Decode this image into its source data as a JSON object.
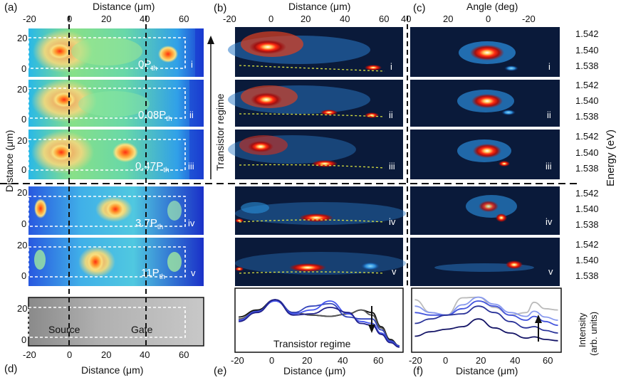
{
  "panel_letters": {
    "a": "(a)",
    "b": "(b)",
    "c": "(c)",
    "d": "(d)",
    "e": "(e)",
    "f": "(f)"
  },
  "axis_labels": {
    "distance_um": "Distance (μm)",
    "angle_deg": "Angle (deg)",
    "energy_ev": "Energy (eV)",
    "intensity": "Intensity",
    "intensity_units": "(arb. units)"
  },
  "annotations": {
    "transistor_regime_vertical": "Transistor regime",
    "transistor_regime_e": "Transistor regime",
    "source": "Source",
    "gate": "Gate"
  },
  "rows": [
    {
      "roman": "i",
      "power": "0P",
      "sub": "th"
    },
    {
      "roman": "ii",
      "power": "0.08P",
      "sub": "th"
    },
    {
      "roman": "iii",
      "power": "0.47P",
      "sub": "th"
    },
    {
      "roman": "iv",
      "power": "3.7P",
      "sub": "th"
    },
    {
      "roman": "v",
      "power": "11P",
      "sub": "th"
    }
  ],
  "ticks": {
    "a_x_top": [
      "-20",
      "0",
      "20",
      "40",
      "60"
    ],
    "a_y": [
      "0",
      "10",
      "20"
    ],
    "b_x_top": [
      "-20",
      "0",
      "20",
      "40",
      "60"
    ],
    "c_x_top": [
      "40",
      "20",
      "0",
      "-20"
    ],
    "energy": [
      "1.542",
      "1.540",
      "1.538"
    ],
    "d_x": [
      "-20",
      "0",
      "20",
      "40",
      "60"
    ],
    "d_y": [
      "0",
      "10",
      "20"
    ],
    "e_x": [
      "-20",
      "0",
      "20",
      "40",
      "60"
    ],
    "f_x": [
      "-20",
      "0",
      "20",
      "40",
      "60"
    ]
  },
  "chart_data": [
    {
      "type": "line",
      "panel": "e",
      "title": "",
      "xlabel": "Distance (μm)",
      "ylabel": "Intensity (arb. units)",
      "xlim": [
        -22,
        70
      ],
      "ylim": [
        0,
        1
      ],
      "x": [
        -20,
        -10,
        0,
        10,
        20,
        30,
        40,
        47,
        53,
        58,
        63,
        68
      ],
      "series": [
        {
          "name": "i",
          "color": "#111111",
          "values": [
            0.55,
            0.66,
            0.82,
            0.62,
            0.58,
            0.56,
            0.6,
            0.66,
            0.62,
            0.4,
            0.2,
            0.1
          ]
        },
        {
          "name": "ii",
          "color": "#555555",
          "values": [
            0.52,
            0.64,
            0.8,
            0.62,
            0.58,
            0.56,
            0.6,
            0.66,
            0.58,
            0.38,
            0.18,
            0.1
          ]
        },
        {
          "name": "iii",
          "color": "#3344bb",
          "values": [
            0.5,
            0.64,
            0.82,
            0.62,
            0.72,
            0.76,
            0.55,
            0.52,
            0.52,
            0.35,
            0.18,
            0.1
          ]
        },
        {
          "name": "iv",
          "color": "#4455ee",
          "values": [
            0.5,
            0.63,
            0.8,
            0.6,
            0.66,
            0.8,
            0.6,
            0.48,
            0.45,
            0.3,
            0.16,
            0.09
          ]
        },
        {
          "name": "v",
          "color": "#22228a",
          "values": [
            0.48,
            0.62,
            0.82,
            0.58,
            0.6,
            0.7,
            0.62,
            0.45,
            0.42,
            0.28,
            0.15,
            0.08
          ]
        }
      ]
    },
    {
      "type": "line",
      "panel": "f",
      "title": "",
      "xlabel": "Distance (μm)",
      "ylabel": "",
      "xlim": [
        -22,
        72
      ],
      "ylim": [
        0,
        1
      ],
      "x": [
        -20,
        -10,
        0,
        10,
        20,
        30,
        40,
        50,
        55,
        62,
        70
      ],
      "series": [
        {
          "name": "i",
          "color": "#bbbbbb",
          "values": [
            0.82,
            0.62,
            0.58,
            0.85,
            0.86,
            0.7,
            0.58,
            0.62,
            0.78,
            0.68,
            0.66
          ]
        },
        {
          "name": "ii",
          "color": "#8899ee",
          "values": [
            0.72,
            0.62,
            0.58,
            0.74,
            0.86,
            0.75,
            0.62,
            0.56,
            0.64,
            0.55,
            0.5
          ]
        },
        {
          "name": "iii",
          "color": "#4455dd",
          "values": [
            0.62,
            0.58,
            0.58,
            0.68,
            0.8,
            0.72,
            0.58,
            0.5,
            0.56,
            0.48,
            0.42
          ]
        },
        {
          "name": "iv",
          "color": "#2a3399",
          "values": [
            0.45,
            0.52,
            0.58,
            0.6,
            0.72,
            0.62,
            0.48,
            0.38,
            0.4,
            0.34,
            0.3
          ]
        },
        {
          "name": "v",
          "color": "#141466",
          "values": [
            0.25,
            0.32,
            0.36,
            0.4,
            0.52,
            0.38,
            0.3,
            0.22,
            0.24,
            0.2,
            0.18
          ]
        }
      ]
    }
  ]
}
